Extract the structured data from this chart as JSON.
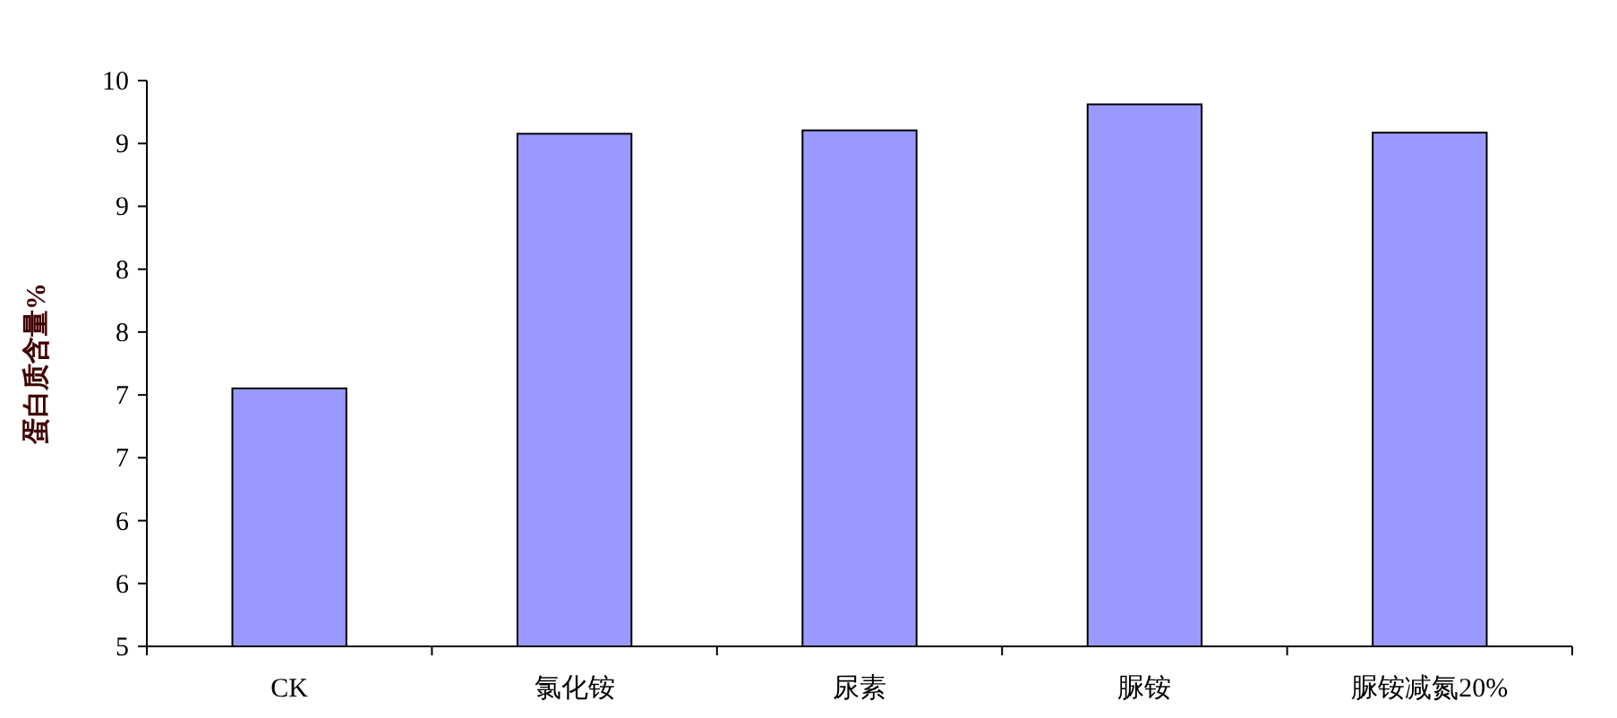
{
  "chart_data": {
    "type": "bar",
    "ylabel": "蛋白质含量%",
    "categories": [
      "CK",
      "氯化铵",
      "尿素",
      "脲铵",
      "脲铵减氮20%"
    ],
    "values": [
      7.28,
      9.53,
      9.56,
      9.79,
      9.54
    ],
    "color": "#9999ff",
    "ylim": [
      5,
      10
    ],
    "yticks": [
      5,
      {
        "value": 5.556,
        "label": "6"
      },
      {
        "value": 6.111,
        "label": "6"
      },
      {
        "value": 6.667,
        "label": "7"
      },
      {
        "value": 7.222,
        "label": "7"
      },
      {
        "value": 7.778,
        "label": "8"
      },
      {
        "value": 8.333,
        "label": "8"
      },
      {
        "value": 8.889,
        "label": "9"
      },
      {
        "value": 9.444,
        "label": "9"
      },
      10
    ]
  }
}
